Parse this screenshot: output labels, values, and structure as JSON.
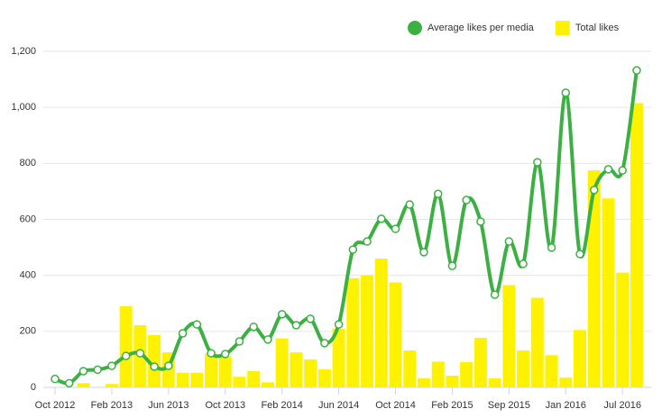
{
  "chart_data": {
    "type": "bar",
    "categories": [
      "Oct 2012",
      null,
      null,
      null,
      "Feb 2013",
      null,
      null,
      null,
      "Jun 2013",
      null,
      null,
      null,
      "Oct 2013",
      null,
      null,
      null,
      "Feb 2014",
      null,
      null,
      null,
      "Jun 2014",
      null,
      null,
      null,
      "Oct 2014",
      null,
      null,
      null,
      "Feb 2015",
      null,
      null,
      null,
      "Sep 2015",
      null,
      null,
      null,
      "Jan 2016",
      null,
      null,
      null,
      "Jul 2016",
      null
    ],
    "series": [
      {
        "name": "Total likes",
        "type": "bar",
        "color": "#fff200",
        "values": [
          0,
          0,
          15,
          0,
          12,
          290,
          222,
          187,
          125,
          52,
          52,
          120,
          110,
          38,
          58,
          18,
          175,
          125,
          100,
          65,
          210,
          390,
          400,
          460,
          375,
          132,
          32,
          92,
          42,
          90,
          177,
          32,
          365,
          132,
          320,
          115,
          35,
          205,
          775,
          675,
          410,
          1015
        ]
      },
      {
        "name": "Average likes per media",
        "type": "line",
        "color": "#3cb043",
        "values": [
          30,
          15,
          58,
          63,
          77,
          112,
          122,
          74,
          77,
          193,
          225,
          122,
          119,
          164,
          216,
          171,
          261,
          222,
          245,
          158,
          225,
          492,
          521,
          602,
          566,
          653,
          483,
          691,
          434,
          669,
          592,
          331,
          521,
          441,
          804,
          499,
          1052,
          476,
          705,
          779,
          775,
          1132
        ]
      }
    ],
    "ylim": [
      0,
      1200
    ],
    "yticks": [
      0,
      200,
      400,
      600,
      800,
      {
        "value": 1000,
        "label": "1,000"
      },
      {
        "value": 1200,
        "label": "1,200"
      }
    ],
    "grid": true,
    "legend": "top-right"
  }
}
